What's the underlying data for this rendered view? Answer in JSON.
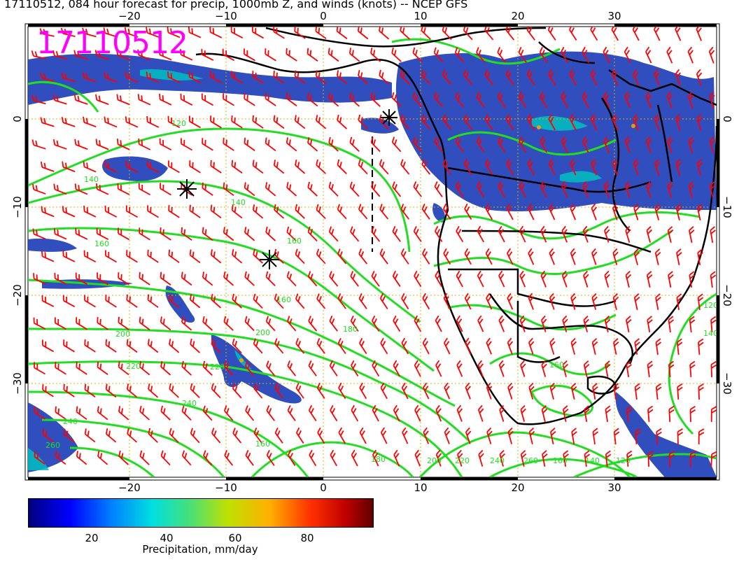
{
  "title": "17110512, 084 hour forecast for precip, 1000mb Z, and winds (knots) -- NCEP GFS",
  "stamp": "17110512",
  "map": {
    "lon_ticks": [
      "−20",
      "−10",
      "0",
      "10",
      "20",
      "30"
    ],
    "lat_ticks": [
      "0",
      "−10",
      "−20",
      "−30"
    ],
    "contour_labels": [
      "120",
      "140",
      "140",
      "160",
      "160",
      "160",
      "180",
      "200",
      "200",
      "220",
      "220",
      "240",
      "240",
      "260",
      "160",
      "180",
      "200",
      "220",
      "240",
      "260",
      "160",
      "140",
      "120",
      "120",
      "140",
      "160"
    ],
    "colors": {
      "contours": "#22dd22",
      "wind_barbs": "#ff0000",
      "coastline": "#000000",
      "precip_low": "#00007f",
      "precip_high": "#600000",
      "stamp": "#ff00ff",
      "grid": "#d4b400"
    }
  },
  "colorbar": {
    "ticks": [
      "20",
      "40",
      "60",
      "80"
    ],
    "label": "Precipitation, mm/day"
  }
}
